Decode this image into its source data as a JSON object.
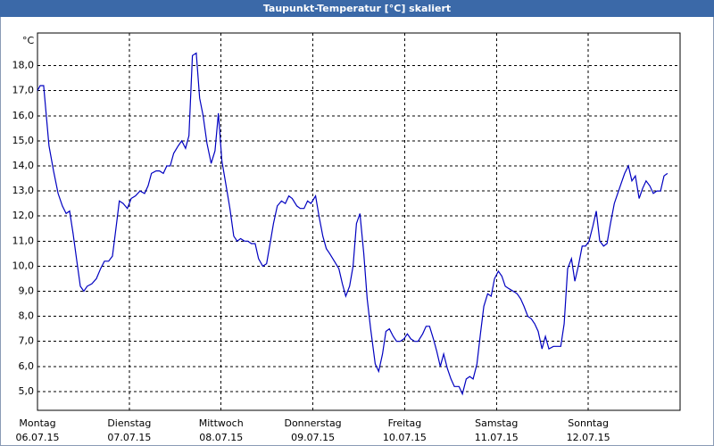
{
  "chart_data": {
    "type": "line",
    "title": "Taupunkt-Temperatur [°C] skaliert",
    "y_unit": "°C",
    "color": "#0000c0",
    "grid": true,
    "xlim": [
      0,
      168
    ],
    "ylim": [
      4.25,
      19.3
    ],
    "xticks": [
      {
        "value": 0,
        "label": [
          "Montag",
          "06.07.15"
        ]
      },
      {
        "value": 24,
        "label": [
          "Dienstag",
          "07.07.15"
        ]
      },
      {
        "value": 48,
        "label": [
          "Mittwoch",
          "08.07.15"
        ]
      },
      {
        "value": 72,
        "label": [
          "Donnerstag",
          "09.07.15"
        ]
      },
      {
        "value": 96,
        "label": [
          "Freitag",
          "10.07.15"
        ]
      },
      {
        "value": 120,
        "label": [
          "Samstag",
          "11.07.15"
        ]
      },
      {
        "value": 144,
        "label": [
          "Sonntag",
          "12.07.15"
        ]
      }
    ],
    "yticks": [
      {
        "value": 5,
        "label": "5,0"
      },
      {
        "value": 6,
        "label": "6,0"
      },
      {
        "value": 7,
        "label": "7,0"
      },
      {
        "value": 8,
        "label": "8,0"
      },
      {
        "value": 9,
        "label": "9,0"
      },
      {
        "value": 10,
        "label": "10,0"
      },
      {
        "value": 11,
        "label": "11,0"
      },
      {
        "value": 12,
        "label": "12,0"
      },
      {
        "value": 13,
        "label": "13,0"
      },
      {
        "value": 14,
        "label": "14,0"
      },
      {
        "value": 15,
        "label": "15,0"
      },
      {
        "value": 16,
        "label": "16,0"
      },
      {
        "value": 17,
        "label": "17,0"
      },
      {
        "value": 18,
        "label": "18,0"
      }
    ],
    "x": [
      0,
      0.7,
      1.6,
      2.3,
      3.0,
      4.2,
      5.4,
      6.5,
      7.5,
      8.4,
      9.3,
      10.3,
      11.2,
      12.1,
      13.0,
      14.2,
      15.4,
      16.5,
      17.5,
      18.6,
      19.6,
      20.5,
      21.4,
      22.4,
      23.5,
      24.5,
      25.6,
      26.8,
      28.0,
      28.9,
      29.8,
      31.0,
      31.9,
      32.9,
      33.8,
      34.7,
      35.6,
      36.8,
      37.7,
      38.7,
      39.6,
      40.5,
      41.5,
      42.4,
      43.3,
      44.3,
      45.4,
      46.4,
      47.3,
      48.2,
      49.2,
      50.3,
      51.3,
      52.2,
      53.1,
      54.1,
      55.0,
      55.9,
      56.9,
      57.8,
      58.9,
      59.9,
      60.8,
      61.7,
      62.7,
      63.8,
      64.8,
      65.7,
      66.6,
      67.8,
      68.7,
      69.7,
      70.6,
      71.5,
      72.7,
      73.6,
      74.6,
      75.5,
      76.4,
      77.6,
      78.8,
      79.7,
      80.6,
      81.6,
      82.5,
      83.4,
      84.3,
      85.3,
      86.2,
      87.1,
      88.3,
      89.2,
      90.2,
      91.1,
      92.0,
      93.0,
      93.9,
      94.8,
      95.8,
      96.7,
      97.6,
      98.6,
      99.5,
      100.7,
      101.6,
      102.5,
      103.5,
      104.4,
      105.3,
      106.2,
      107.2,
      108.1,
      109.0,
      110.2,
      111.1,
      112.1,
      113.0,
      113.9,
      114.9,
      115.8,
      116.7,
      117.7,
      118.6,
      119.5,
      120.5,
      121.4,
      122.3,
      123.3,
      124.4,
      125.4,
      126.3,
      127.2,
      128.2,
      129.1,
      130.0,
      130.9,
      131.9,
      132.8,
      133.7,
      134.9,
      135.8,
      136.8,
      137.7,
      138.6,
      139.6,
      140.5,
      141.4,
      142.4,
      143.3,
      144.2,
      145.2,
      146.1,
      147.0,
      148.0,
      148.9,
      149.8,
      150.8,
      151.7,
      152.6,
      153.5,
      154.5,
      155.4,
      156.3,
      157.3,
      158.2,
      159.1,
      160.1,
      161.0,
      161.9,
      162.9,
      163.8,
      164.7
    ],
    "values": [
      17.0,
      17.2,
      17.2,
      16.0,
      14.8,
      13.8,
      12.9,
      12.4,
      12.1,
      12.2,
      11.3,
      10.2,
      9.2,
      9.0,
      9.2,
      9.3,
      9.5,
      9.9,
      10.2,
      10.2,
      10.4,
      11.5,
      12.6,
      12.5,
      12.3,
      12.7,
      12.8,
      13.0,
      12.9,
      13.2,
      13.7,
      13.8,
      13.8,
      13.7,
      14.0,
      14.0,
      14.5,
      14.8,
      15.0,
      14.7,
      15.2,
      18.4,
      18.5,
      16.7,
      16.0,
      14.9,
      14.1,
      14.6,
      16.1,
      14.2,
      13.3,
      12.3,
      11.2,
      11.0,
      11.1,
      11.0,
      11.0,
      10.9,
      10.9,
      10.3,
      10.0,
      10.1,
      10.9,
      11.7,
      12.4,
      12.6,
      12.5,
      12.8,
      12.7,
      12.4,
      12.3,
      12.3,
      12.6,
      12.5,
      12.8,
      12.0,
      11.2,
      10.7,
      10.5,
      10.2,
      9.9,
      9.3,
      8.8,
      9.2,
      10.0,
      11.7,
      12.1,
      10.5,
      8.7,
      7.5,
      6.1,
      5.8,
      6.5,
      7.4,
      7.5,
      7.2,
      7.0,
      7.0,
      7.1,
      7.3,
      7.1,
      7.0,
      7.0,
      7.3,
      7.6,
      7.6,
      7.1,
      6.6,
      6.0,
      6.5,
      5.9,
      5.5,
      5.2,
      5.2,
      4.9,
      5.5,
      5.6,
      5.5,
      6.1,
      7.3,
      8.4,
      8.9,
      8.8,
      9.5,
      9.8,
      9.6,
      9.2,
      9.1,
      9.0,
      8.9,
      8.7,
      8.4,
      8.0,
      7.9,
      7.7,
      7.4,
      6.7,
      7.2,
      6.7,
      6.8,
      6.8,
      6.8,
      7.7,
      9.9,
      10.3,
      9.4,
      10.0,
      10.8,
      10.8,
      11.0,
      11.6,
      12.2,
      11.0,
      10.8,
      10.9,
      11.7,
      12.5,
      12.9,
      13.3,
      13.7,
      14.0,
      13.4,
      13.6,
      12.7,
      13.1,
      13.4,
      13.2,
      12.9,
      13.0,
      13.0,
      13.6,
      13.7
    ]
  }
}
